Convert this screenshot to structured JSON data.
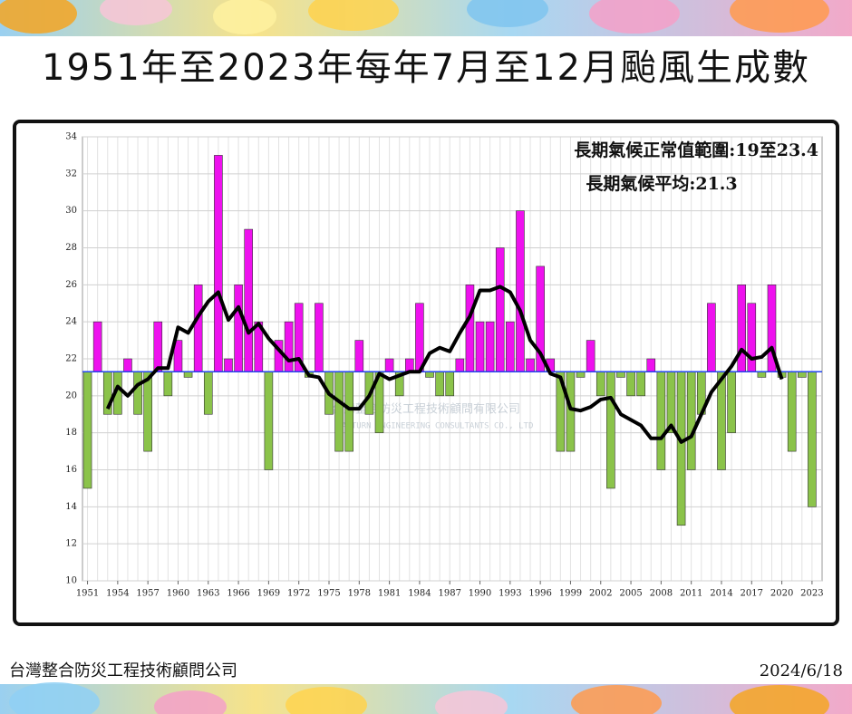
{
  "chart_data": {
    "type": "bar",
    "title": "1951年至2023年每年7月至12月颱風生成數",
    "annotations": [
      "長期氣候正常值範圍:19至23.4",
      "長期氣候平均:21.3"
    ],
    "watermark": [
      "台灣整合防災工程技術顧問有限公司",
      "TAITURN ENGINEERING CONSULTANTS CO., LTD"
    ],
    "x": [
      1951,
      1952,
      1953,
      1954,
      1955,
      1956,
      1957,
      1958,
      1959,
      1960,
      1961,
      1962,
      1963,
      1964,
      1965,
      1966,
      1967,
      1968,
      1969,
      1970,
      1971,
      1972,
      1973,
      1974,
      1975,
      1976,
      1977,
      1978,
      1979,
      1980,
      1981,
      1982,
      1983,
      1984,
      1985,
      1986,
      1987,
      1988,
      1989,
      1990,
      1991,
      1992,
      1993,
      1994,
      1995,
      1996,
      1997,
      1998,
      1999,
      2000,
      2001,
      2002,
      2003,
      2004,
      2005,
      2006,
      2007,
      2008,
      2009,
      2010,
      2011,
      2012,
      2013,
      2014,
      2015,
      2016,
      2017,
      2018,
      2019,
      2020,
      2021,
      2022,
      2023
    ],
    "values": [
      15,
      24,
      19,
      19,
      22,
      19,
      17,
      24,
      20,
      23,
      21,
      26,
      19,
      33,
      22,
      26,
      29,
      24,
      16,
      23,
      24,
      25,
      21,
      25,
      19,
      17,
      17,
      23,
      19,
      18,
      22,
      20,
      22,
      25,
      21,
      20,
      20,
      22,
      26,
      24,
      24,
      28,
      24,
      30,
      22,
      27,
      22,
      17,
      17,
      21,
      23,
      20,
      15,
      21,
      20,
      20,
      22,
      16,
      18,
      13,
      16,
      19,
      25,
      16,
      18,
      26,
      25,
      21,
      26,
      21,
      17,
      21,
      14
    ],
    "line_values": [
      null,
      null,
      19.3,
      20.5,
      20.0,
      20.6,
      20.9,
      21.5,
      21.5,
      23.7,
      23.4,
      24.3,
      25.1,
      25.6,
      24.1,
      24.8,
      23.4,
      23.9,
      23.1,
      22.5,
      21.9,
      22.0,
      21.1,
      21.0,
      20.1,
      19.7,
      19.3,
      19.3,
      20.0,
      21.2,
      20.9,
      21.1,
      21.3,
      21.3,
      22.3,
      22.6,
      22.4,
      23.4,
      24.3,
      25.7,
      25.7,
      25.9,
      25.6,
      24.6,
      23.0,
      22.3,
      21.2,
      21.0,
      19.3,
      19.2,
      19.4,
      19.8,
      19.9,
      19.0,
      18.7,
      18.4,
      17.7,
      17.7,
      18.4,
      17.5,
      17.8,
      19.0,
      20.2,
      20.9,
      21.6,
      22.5,
      22.0,
      22.1,
      22.6,
      20.9,
      null,
      null,
      null
    ],
    "baseline": 21.3,
    "color_above": "#ee11ee",
    "color_below": "#8bc34a",
    "line_color": "#000000",
    "baseline_color": "#2244ee",
    "xlim": [
      1950.5,
      2024
    ],
    "xticks": [
      1951,
      1954,
      1957,
      1960,
      1963,
      1966,
      1969,
      1972,
      1975,
      1978,
      1981,
      1984,
      1987,
      1990,
      1993,
      1996,
      1999,
      2002,
      2005,
      2008,
      2011,
      2014,
      2017,
      2020,
      2023
    ],
    "ylim": [
      10,
      34
    ],
    "yticks": [
      10,
      12,
      14,
      16,
      18,
      20,
      22,
      24,
      26,
      28,
      30,
      32,
      34
    ],
    "grid": true
  },
  "footer": {
    "company": "台灣整合防災工程技術顧問公司",
    "date": "2024/6/18"
  }
}
